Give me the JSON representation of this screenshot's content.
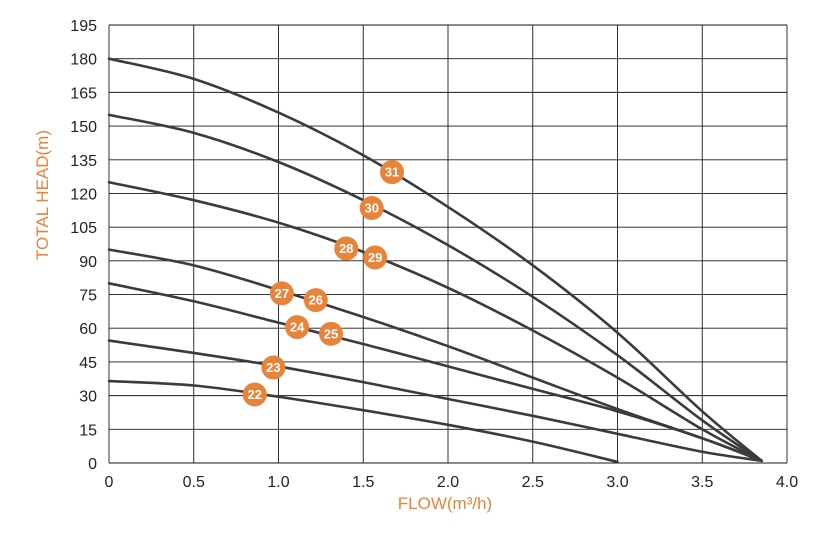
{
  "chart_data": {
    "type": "line",
    "title": "",
    "xlabel": "FLOW(m³/h)",
    "ylabel": "TOTAL HEAD(m)",
    "xlim": [
      0,
      4.0
    ],
    "ylim": [
      0,
      195
    ],
    "x_ticks": [
      "0",
      "0.5",
      "1.0",
      "1.5",
      "2.0",
      "2.5",
      "3.0",
      "3.5",
      "4.0"
    ],
    "y_ticks": [
      "0",
      "15",
      "30",
      "45",
      "60",
      "75",
      "90",
      "105",
      "120",
      "135",
      "150",
      "165",
      "180",
      "195"
    ],
    "grid": true,
    "colors": {
      "curve": "#3b3b3d",
      "accent": "#e8833a"
    },
    "series": [
      {
        "x": [
          0,
          0.5,
          1.0,
          1.5,
          2.0,
          2.5,
          3.0
        ],
        "y": [
          36.5,
          34.5,
          29.5,
          23.5,
          17,
          9.5,
          0.5
        ]
      },
      {
        "x": [
          0,
          0.5,
          1.0,
          1.5,
          2.0,
          2.5,
          3.0,
          3.5,
          3.85
        ],
        "y": [
          54.5,
          49,
          43,
          36,
          28.5,
          21,
          13,
          5,
          1
        ]
      },
      {
        "x": [
          0,
          0.5,
          1.0,
          1.5,
          2.0,
          2.5,
          3.0,
          3.5,
          3.85
        ],
        "y": [
          80,
          72,
          62.5,
          53,
          43,
          33,
          23,
          11,
          1
        ]
      },
      {
        "x": [
          0,
          0.5,
          1.0,
          1.5,
          2.0,
          2.5,
          3.0,
          3.5,
          3.85
        ],
        "y": [
          95,
          88,
          77,
          65,
          52,
          38,
          24,
          11,
          1
        ]
      },
      {
        "x": [
          0,
          0.5,
          1.0,
          1.5,
          2.0,
          2.5,
          3.0,
          3.5,
          3.85
        ],
        "y": [
          125,
          117,
          107,
          94,
          78,
          59,
          38,
          15,
          1
        ]
      },
      {
        "x": [
          0,
          0.5,
          1.0,
          1.5,
          2.0,
          2.5,
          3.0,
          3.5,
          3.85
        ],
        "y": [
          155,
          147,
          134,
          117,
          97,
          74,
          48,
          19,
          1
        ]
      },
      {
        "x": [
          0,
          0.5,
          1.0,
          1.5,
          2.0,
          2.5,
          3.0,
          3.5,
          3.85
        ],
        "y": [
          180,
          171,
          156,
          137,
          114,
          88,
          58,
          23,
          1
        ]
      }
    ],
    "annotations": [
      {
        "label": "22",
        "x": 0.86,
        "y": 30.5
      },
      {
        "label": "23",
        "x": 0.97,
        "y": 42.5
      },
      {
        "label": "24",
        "x": 1.11,
        "y": 60.5
      },
      {
        "label": "25",
        "x": 1.31,
        "y": 57.5
      },
      {
        "label": "26",
        "x": 1.22,
        "y": 72.5
      },
      {
        "label": "27",
        "x": 1.02,
        "y": 75.5
      },
      {
        "label": "28",
        "x": 1.4,
        "y": 95.5
      },
      {
        "label": "29",
        "x": 1.57,
        "y": 91.5
      },
      {
        "label": "30",
        "x": 1.55,
        "y": 113.5
      },
      {
        "label": "31",
        "x": 1.67,
        "y": 129.5
      }
    ]
  }
}
